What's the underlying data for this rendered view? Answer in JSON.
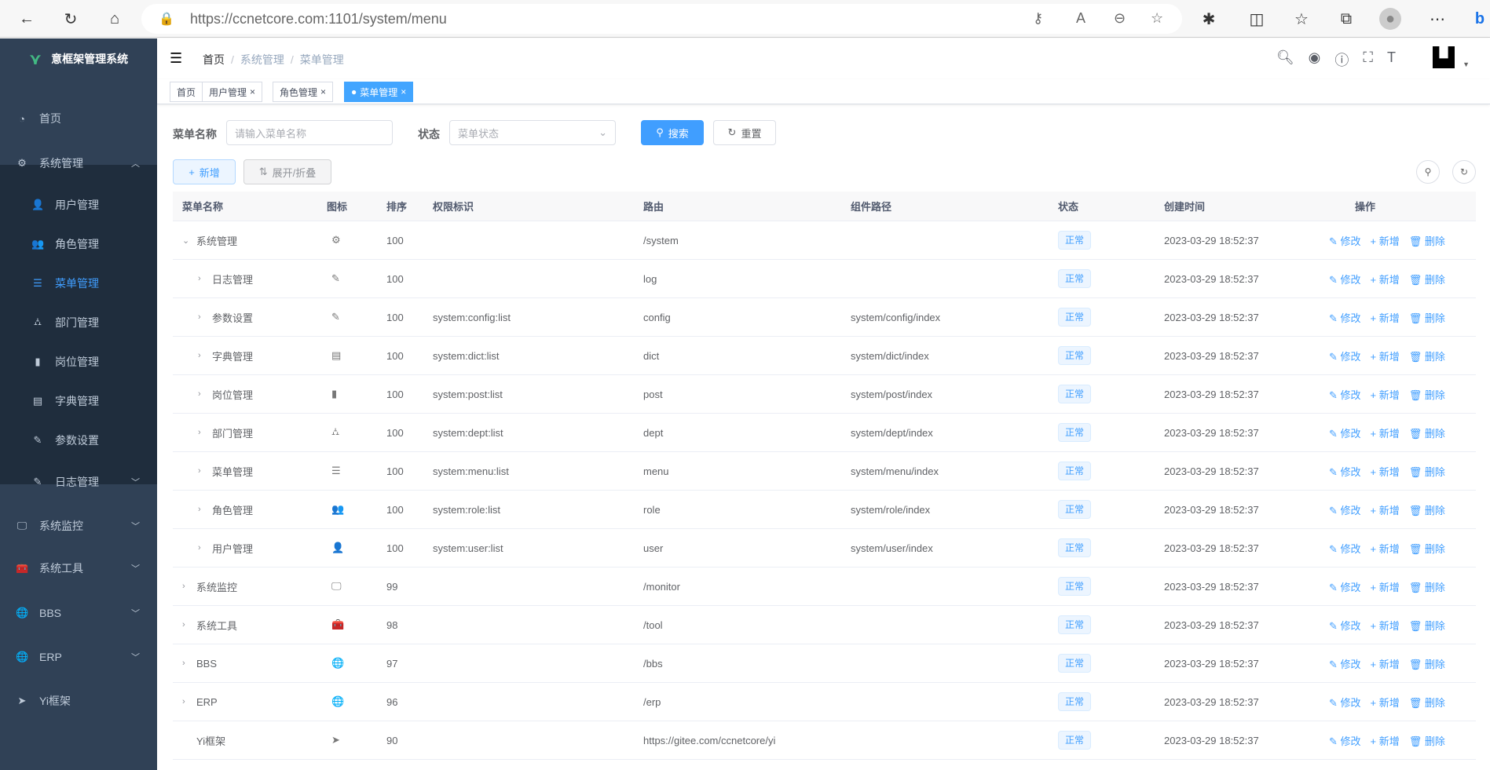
{
  "browser": {
    "url": "https://ccnetcore.com:1101/system/menu"
  },
  "app": {
    "title": "意框架管理系统"
  },
  "sidebar": {
    "items": [
      {
        "label": "首页",
        "icon": "dashboard-icon"
      },
      {
        "label": "系统管理",
        "icon": "gear-icon",
        "expanded": true
      },
      {
        "label": "用户管理",
        "icon": "user-icon",
        "sub": true
      },
      {
        "label": "角色管理",
        "icon": "peoples-icon",
        "sub": true
      },
      {
        "label": "菜单管理",
        "icon": "tree-table-icon",
        "sub": true,
        "active": true
      },
      {
        "label": "部门管理",
        "icon": "tree-icon",
        "sub": true
      },
      {
        "label": "岗位管理",
        "icon": "post-icon",
        "sub": true
      },
      {
        "label": "字典管理",
        "icon": "dict-icon",
        "sub": true
      },
      {
        "label": "参数设置",
        "icon": "edit-icon",
        "sub": true
      },
      {
        "label": "日志管理",
        "icon": "log-icon",
        "sub": true,
        "collapsed": true
      },
      {
        "label": "系统监控",
        "icon": "monitor-icon",
        "collapsed": true
      },
      {
        "label": "系统工具",
        "icon": "tool-icon",
        "collapsed": true
      },
      {
        "label": "BBS",
        "icon": "globe-icon",
        "collapsed": true
      },
      {
        "label": "ERP",
        "icon": "globe-icon",
        "collapsed": true
      },
      {
        "label": "Yi框架",
        "icon": "guide-icon"
      }
    ]
  },
  "breadcrumb": [
    "首页",
    "系统管理",
    "菜单管理"
  ],
  "tags": [
    {
      "label": "首页"
    },
    {
      "label": "用户管理",
      "closable": true
    },
    {
      "label": "角色管理",
      "closable": true
    },
    {
      "label": "菜单管理",
      "closable": true,
      "active": true
    }
  ],
  "search": {
    "name_label": "菜单名称",
    "name_placeholder": "请输入菜单名称",
    "status_label": "状态",
    "status_placeholder": "菜单状态",
    "search_label": "搜索",
    "reset_label": "重置"
  },
  "toolbar": {
    "add_label": "新增",
    "toggle_label": "展开/折叠"
  },
  "colors": {
    "accent": "#409eff",
    "sidebar": "#304156",
    "submenu": "#1f2d3d"
  },
  "table": {
    "columns": [
      "菜单名称",
      "图标",
      "排序",
      "权限标识",
      "路由",
      "组件路径",
      "状态",
      "创建时间",
      "操作"
    ],
    "actions": [
      "修改",
      "新增",
      "删除"
    ],
    "rows": [
      {
        "name": "系统管理",
        "level": 0,
        "arrow": "down",
        "icon": "⚙",
        "sort": "100",
        "perm": "",
        "route": "/system",
        "component": "",
        "status": "正常",
        "time": "2023-03-29 18:52:37"
      },
      {
        "name": "日志管理",
        "level": 1,
        "arrow": "right",
        "icon": "✎",
        "sort": "100",
        "perm": "",
        "route": "log",
        "component": "",
        "status": "正常",
        "time": "2023-03-29 18:52:37"
      },
      {
        "name": "参数设置",
        "level": 1,
        "arrow": "right",
        "icon": "✎",
        "sort": "100",
        "perm": "system:config:list",
        "route": "config",
        "component": "system/config/index",
        "status": "正常",
        "time": "2023-03-29 18:52:37"
      },
      {
        "name": "字典管理",
        "level": 1,
        "arrow": "right",
        "icon": "▤",
        "sort": "100",
        "perm": "system:dict:list",
        "route": "dict",
        "component": "system/dict/index",
        "status": "正常",
        "time": "2023-03-29 18:52:37"
      },
      {
        "name": "岗位管理",
        "level": 1,
        "arrow": "right",
        "icon": "▮",
        "sort": "100",
        "perm": "system:post:list",
        "route": "post",
        "component": "system/post/index",
        "status": "正常",
        "time": "2023-03-29 18:52:37"
      },
      {
        "name": "部门管理",
        "level": 1,
        "arrow": "right",
        "icon": "⛼",
        "sort": "100",
        "perm": "system:dept:list",
        "route": "dept",
        "component": "system/dept/index",
        "status": "正常",
        "time": "2023-03-29 18:52:37"
      },
      {
        "name": "菜单管理",
        "level": 1,
        "arrow": "right",
        "icon": "☰",
        "sort": "100",
        "perm": "system:menu:list",
        "route": "menu",
        "component": "system/menu/index",
        "status": "正常",
        "time": "2023-03-29 18:52:37"
      },
      {
        "name": "角色管理",
        "level": 1,
        "arrow": "right",
        "icon": "👥",
        "sort": "100",
        "perm": "system:role:list",
        "route": "role",
        "component": "system/role/index",
        "status": "正常",
        "time": "2023-03-29 18:52:37"
      },
      {
        "name": "用户管理",
        "level": 1,
        "arrow": "right",
        "icon": "👤",
        "sort": "100",
        "perm": "system:user:list",
        "route": "user",
        "component": "system/user/index",
        "status": "正常",
        "time": "2023-03-29 18:52:37"
      },
      {
        "name": "系统监控",
        "level": 0,
        "arrow": "right",
        "icon": "🖵",
        "sort": "99",
        "perm": "",
        "route": "/monitor",
        "component": "",
        "status": "正常",
        "time": "2023-03-29 18:52:37"
      },
      {
        "name": "系统工具",
        "level": 0,
        "arrow": "right",
        "icon": "🧰",
        "sort": "98",
        "perm": "",
        "route": "/tool",
        "component": "",
        "status": "正常",
        "time": "2023-03-29 18:52:37"
      },
      {
        "name": "BBS",
        "level": 0,
        "arrow": "right",
        "icon": "🌐",
        "sort": "97",
        "perm": "",
        "route": "/bbs",
        "component": "",
        "status": "正常",
        "time": "2023-03-29 18:52:37"
      },
      {
        "name": "ERP",
        "level": 0,
        "arrow": "right",
        "icon": "🌐",
        "sort": "96",
        "perm": "",
        "route": "/erp",
        "component": "",
        "status": "正常",
        "time": "2023-03-29 18:52:37"
      },
      {
        "name": "Yi框架",
        "level": 0,
        "arrow": "",
        "icon": "➤",
        "sort": "90",
        "perm": "",
        "route": "https://gitee.com/ccnetcore/yi",
        "component": "",
        "status": "正常",
        "time": "2023-03-29 18:52:37"
      }
    ]
  }
}
